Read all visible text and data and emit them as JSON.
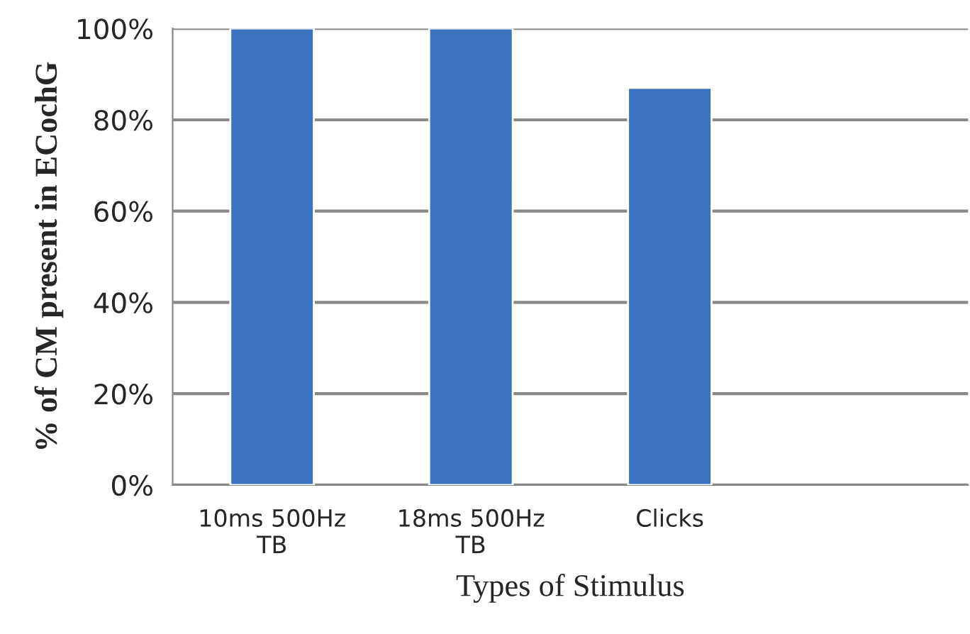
{
  "chart_data": {
    "type": "bar",
    "xlabel": "Types of Stimulus",
    "ylabel": "% of CM present in ECochG",
    "categories": [
      "10ms 500Hz\nTB",
      "18ms 500Hz\nTB",
      "Clicks",
      null
    ],
    "series": [
      {
        "color": "#3a72be",
        "values": [
          100,
          100,
          87,
          null
        ]
      }
    ],
    "ylim": [
      0,
      100
    ],
    "yticks": [
      {
        "value": 0,
        "label": "0%"
      },
      {
        "value": 20,
        "label": "20%"
      },
      {
        "value": 40,
        "label": "40%"
      },
      {
        "value": 60,
        "label": "60%"
      },
      {
        "value": 80,
        "label": "80%"
      },
      {
        "value": 100,
        "label": "100%"
      }
    ],
    "grid": "y",
    "legend": false
  }
}
